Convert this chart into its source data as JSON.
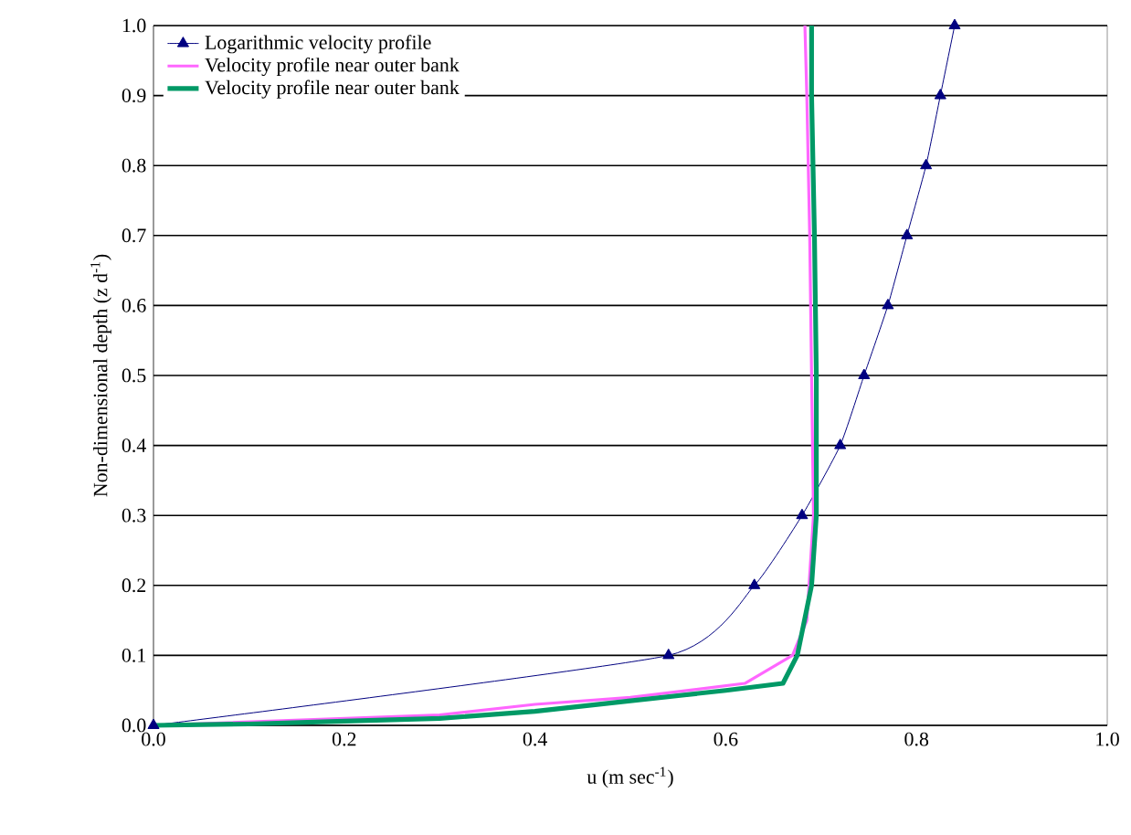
{
  "chart_data": {
    "type": "line",
    "xlabel": "u (m sec$^{-1}$)",
    "ylabel": "Non-dimensional depth (z d$^{-1}$)",
    "xlim": [
      0,
      1
    ],
    "ylim": [
      0,
      1
    ],
    "xticks": [
      {
        "value": 0,
        "label": "0.0"
      },
      0.2,
      0.4,
      0.6,
      0.8,
      {
        "value": 1,
        "label": "1.0"
      }
    ],
    "yticks": [
      {
        "value": 0,
        "label": "0.0"
      },
      0.1,
      0.2,
      0.3,
      0.4,
      0.5,
      0.6,
      0.7,
      0.8,
      0.9,
      {
        "value": 1,
        "label": "1.0"
      }
    ],
    "grid": "y",
    "legend": "top left",
    "series": [
      {
        "name": "Logarithmic velocity profile",
        "color": "#000080",
        "marker": "triangle",
        "x": [
          0,
          0.54,
          0.63,
          0.68,
          0.72,
          0.745,
          0.77,
          0.79,
          0.81,
          0.825,
          0.84
        ],
        "values": [
          0,
          0.1,
          0.2,
          0.3,
          0.4,
          0.5,
          0.6,
          0.7,
          0.8,
          0.9,
          1.0
        ]
      },
      {
        "name": "Velocity profile near outer bank",
        "color": "#ff66ff",
        "marker": "none",
        "x": [
          0,
          0.2,
          0.3,
          0.4,
          0.5,
          0.62,
          0.67,
          0.685,
          0.69,
          0.692,
          0.69,
          0.688,
          0.685,
          0.683
        ],
        "values": [
          0,
          null,
          0.015,
          0.03,
          0.04,
          0.06,
          0.1,
          0.15,
          null,
          0.3,
          0.5,
          0.7,
          0.9,
          1.0
        ]
      },
      {
        "name": "Velocity profile near outer bank",
        "color": "#009966",
        "marker": "none",
        "x": [
          0,
          0.1,
          0.2,
          0.3,
          0.4,
          0.5,
          0.6,
          0.66,
          0.675,
          0.69,
          0.695,
          0.695,
          0.693,
          0.69,
          0.69
        ],
        "values": [
          0,
          0.002,
          0.006,
          0.01,
          0.02,
          0.035,
          0.05,
          0.06,
          0.1,
          0.2,
          0.3,
          0.5,
          0.7,
          0.9,
          1.0
        ]
      }
    ]
  }
}
